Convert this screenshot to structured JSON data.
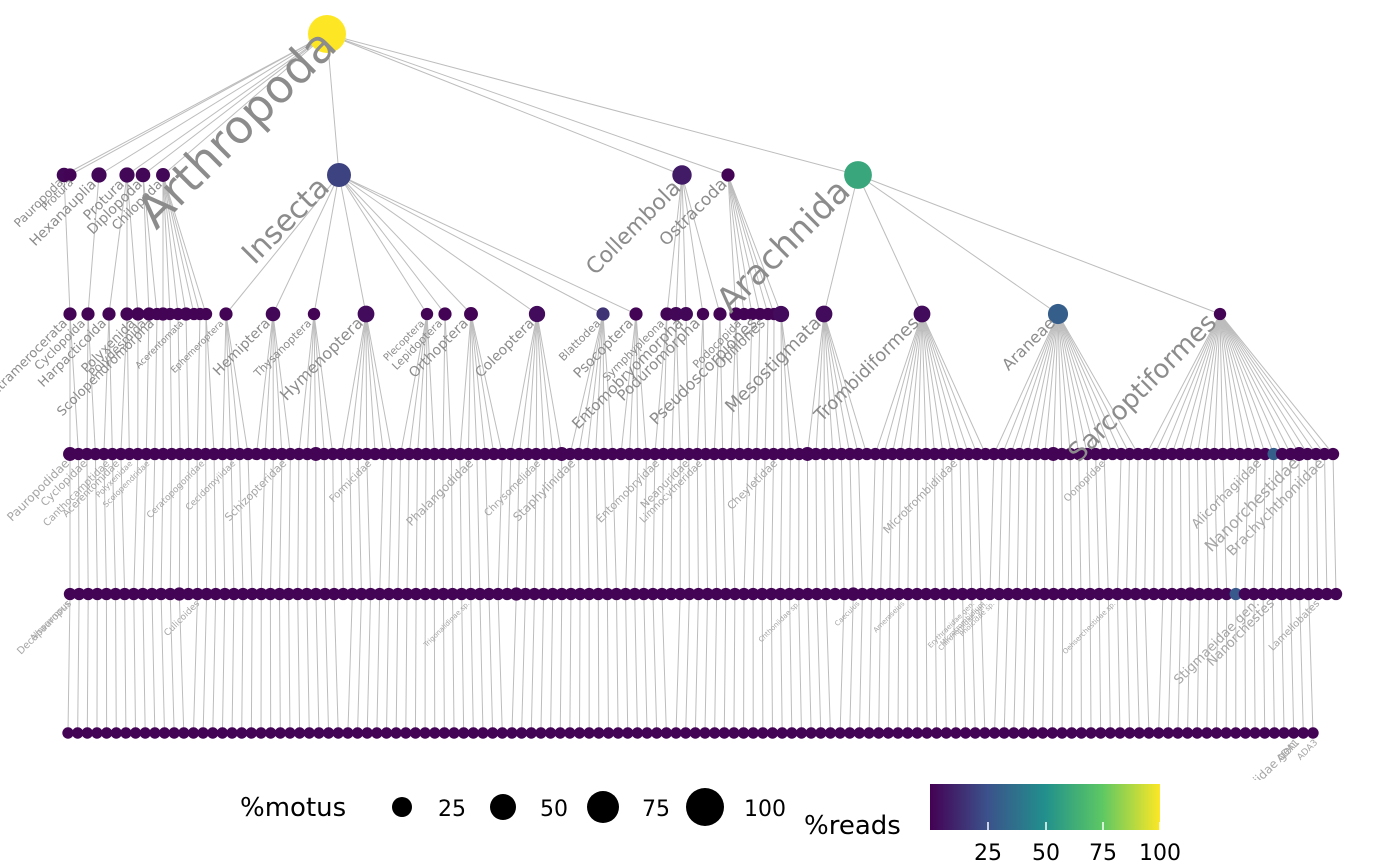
{
  "tree": {
    "root": {
      "label": "Arthropoda",
      "motus": 100,
      "reads": 100
    },
    "classes": [
      {
        "label": "Pauropoda",
        "motus": 6,
        "reads": 2
      },
      {
        "label": "Protura",
        "motus": 4,
        "reads": 1
      },
      {
        "label": "Hexanauplia",
        "motus": 7,
        "reads": 2
      },
      {
        "label": "Protura",
        "motus": 7,
        "reads": 2
      },
      {
        "label": "Diplopoda",
        "motus": 6,
        "reads": 2
      },
      {
        "label": "Chilopoda",
        "motus": 5,
        "reads": 2
      },
      {
        "label": "Insecta",
        "motus": 30,
        "reads": 20
      },
      {
        "label": "Collembola",
        "motus": 16,
        "reads": 8
      },
      {
        "label": "Ostracoda",
        "motus": 4,
        "reads": 1
      },
      {
        "label": "Arachnida",
        "motus": 45,
        "reads": 60
      }
    ],
    "orders": [
      {
        "label": "Tetramerocerata",
        "motus": 4,
        "reads": 1
      },
      {
        "label": "Cyclopoida",
        "motus": 4,
        "reads": 1
      },
      {
        "label": "Harpacticoida",
        "motus": 4,
        "reads": 1
      },
      {
        "label": "Polyxenida",
        "motus": 4,
        "reads": 1
      },
      {
        "label": "Polydesmida",
        "motus": 4,
        "reads": 1
      },
      {
        "label": "Scolopendromorpha",
        "motus": 4,
        "reads": 1
      },
      {
        "label": "Lithobiomorpha",
        "motus": 4,
        "reads": 1
      },
      {
        "label": "Acerentomata",
        "motus": 4,
        "reads": 1
      },
      {
        "label": "Ephemeroptera",
        "motus": 4,
        "reads": 1
      },
      {
        "label": "Hemiptera",
        "motus": 6,
        "reads": 2
      },
      {
        "label": "Thysanoptera",
        "motus": 3,
        "reads": 1
      },
      {
        "label": "Hymenoptera",
        "motus": 10,
        "reads": 3
      },
      {
        "label": "Plecoptera",
        "motus": 3,
        "reads": 1
      },
      {
        "label": "Lepidoptera",
        "motus": 4,
        "reads": 1
      },
      {
        "label": "Orthoptera",
        "motus": 5,
        "reads": 1
      },
      {
        "label": "Coleoptera",
        "motus": 9,
        "reads": 3
      },
      {
        "label": "Blattodea",
        "motus": 4,
        "reads": 15
      },
      {
        "label": "Psocoptera",
        "motus": 4,
        "reads": 1
      },
      {
        "label": "Symphypleona",
        "motus": 4,
        "reads": 1
      },
      {
        "label": "Entomobryomorpha",
        "motus": 5,
        "reads": 2
      },
      {
        "label": "Poduromorpha",
        "motus": 5,
        "reads": 2
      },
      {
        "label": "Podocopida",
        "motus": 3,
        "reads": 1
      },
      {
        "label": "Pseudoscorpiones",
        "motus": 4,
        "reads": 1
      },
      {
        "label": "Opiliones",
        "motus": 4,
        "reads": 1
      },
      {
        "label": "Mesostigmata",
        "motus": 9,
        "reads": 3
      },
      {
        "label": "Trombidiformes",
        "motus": 10,
        "reads": 3
      },
      {
        "label": "Araneae",
        "motus": 10,
        "reads": 3
      },
      {
        "label": "Sarcoptiformes",
        "motus": 18,
        "reads": 30
      }
    ],
    "families": [
      {
        "label": "Pauropodidae"
      },
      {
        "label": "Cyclopidae"
      },
      {
        "label": "Canthocamptidae"
      },
      {
        "label": "Acerentomidae"
      },
      {
        "label": "Polyxenidae"
      },
      {
        "label": "Scolopendridae"
      },
      {
        "label": "Ceratopogonidae"
      },
      {
        "label": "Cecidomyiidae"
      },
      {
        "label": "Schizopteridae"
      },
      {
        "label": "Formicidae"
      },
      {
        "label": "Phalangodidae"
      },
      {
        "label": "Chrysomelidae"
      },
      {
        "label": "Staphylinidae"
      },
      {
        "label": "Entomobryidae"
      },
      {
        "label": "Neanuridae"
      },
      {
        "label": "Limnocytheridae"
      },
      {
        "label": "Cheyletidae"
      },
      {
        "label": "Microtrombidiidae"
      },
      {
        "label": "Oonopidae"
      },
      {
        "label": "Alicorhagiidae"
      },
      {
        "label": "Nanorchestidae"
      },
      {
        "label": "Brachychthoniidae"
      }
    ],
    "genera": [
      {
        "label": "Allopauropus"
      },
      {
        "label": "Decapauropus"
      },
      {
        "label": "Culicoides"
      },
      {
        "label": "Chironomidae gen."
      },
      {
        "label": "Trigonalidinae sp."
      },
      {
        "label": "Ameroseius"
      },
      {
        "label": "Chthoniidae sp."
      },
      {
        "label": "Caeculus"
      },
      {
        "label": "Erythraeidae gen."
      },
      {
        "label": "Microtrombidium"
      },
      {
        "label": "Pholcidae sp."
      },
      {
        "label": "Oehserchestidae sp."
      },
      {
        "label": "Stigmaeidae gen."
      },
      {
        "label": "Nanorchestes"
      },
      {
        "label": "Lamellobates"
      }
    ],
    "species": [
      {
        "label": "Brachychthoniidae gen."
      },
      {
        "label": "ADA1"
      },
      {
        "label": "ADA3"
      }
    ]
  },
  "legend": {
    "motus_title": "%motus",
    "motus_sizes": [
      "25",
      "50",
      "75",
      "100"
    ],
    "reads_title": "%reads",
    "reads_ticks": [
      "25",
      "50",
      "75",
      "100"
    ],
    "reads_colors": [
      "#440154",
      "#3b528b",
      "#21908c",
      "#5dc863",
      "#fde725"
    ]
  }
}
